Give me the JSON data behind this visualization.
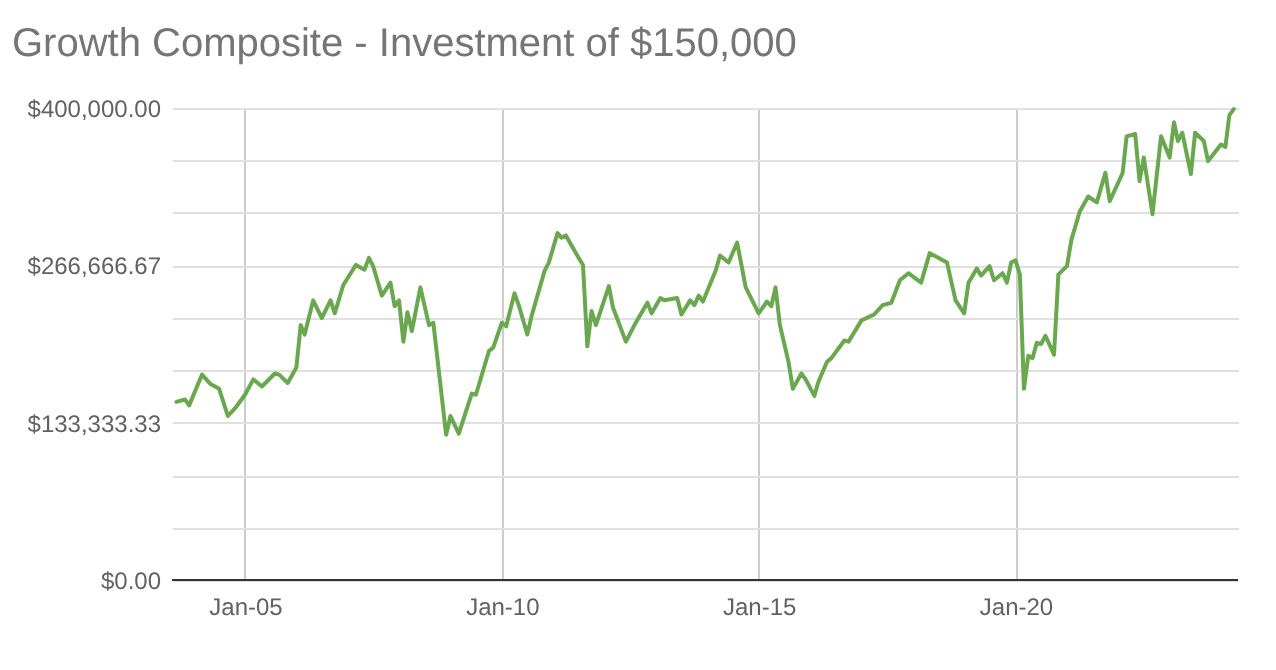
{
  "chart_data": {
    "type": "line",
    "title": "Growth Composite - Investment of $150,000",
    "x": [
      "2003-09",
      "2003-11",
      "2003-12",
      "2004-03",
      "2004-05",
      "2004-07",
      "2004-09",
      "2004-11",
      "2005-01",
      "2005-03",
      "2005-05",
      "2005-08",
      "2005-09",
      "2005-11",
      "2006-01",
      "2006-02",
      "2006-03",
      "2006-05",
      "2006-07",
      "2006-09",
      "2006-10",
      "2006-12",
      "2007-03",
      "2007-05",
      "2007-06",
      "2007-07",
      "2007-09",
      "2007-11",
      "2007-12",
      "2008-01",
      "2008-02",
      "2008-03",
      "2008-04",
      "2008-06",
      "2008-08",
      "2008-09",
      "2008-12",
      "2009-01",
      "2009-03",
      "2009-06",
      "2009-07",
      "2009-10",
      "2009-11",
      "2010-01",
      "2010-02",
      "2010-04",
      "2010-05",
      "2010-07",
      "2010-08",
      "2010-11",
      "2010-12",
      "2011-02",
      "2011-03",
      "2011-04",
      "2011-07",
      "2011-08",
      "2011-09",
      "2011-10",
      "2011-11",
      "2012-02",
      "2012-03",
      "2012-06",
      "2012-08",
      "2012-11",
      "2012-12",
      "2013-02",
      "2013-03",
      "2013-06",
      "2013-07",
      "2013-09",
      "2013-10",
      "2013-11",
      "2013-12",
      "2014-03",
      "2014-04",
      "2014-06",
      "2014-08",
      "2014-10",
      "2015-01",
      "2015-03",
      "2015-04",
      "2015-05",
      "2015-06",
      "2015-08",
      "2015-09",
      "2015-11",
      "2015-12",
      "2016-02",
      "2016-03",
      "2016-05",
      "2016-06",
      "2016-09",
      "2016-10",
      "2017-01",
      "2017-04",
      "2017-06",
      "2017-08",
      "2017-10",
      "2017-12",
      "2018-03",
      "2018-05",
      "2018-07",
      "2018-09",
      "2018-11",
      "2019-01",
      "2019-02",
      "2019-04",
      "2019-05",
      "2019-07",
      "2019-08",
      "2019-10",
      "2019-11",
      "2019-12",
      "2020-01",
      "2020-02",
      "2020-03",
      "2020-04",
      "2020-05",
      "2020-06",
      "2020-07",
      "2020-08",
      "2020-10",
      "2020-11",
      "2021-01",
      "2021-02",
      "2021-04",
      "2021-06",
      "2021-08",
      "2021-10",
      "2021-11",
      "2022-02",
      "2022-03",
      "2022-05",
      "2022-06",
      "2022-07",
      "2022-09",
      "2022-11",
      "2023-01",
      "2023-02",
      "2023-03",
      "2023-04",
      "2023-06",
      "2023-07",
      "2023-09",
      "2023-10",
      "2024-01",
      "2024-02",
      "2024-03",
      "2024-04"
    ],
    "series": [
      {
        "color": "#6aa84f",
        "values": [
          151000,
          153000,
          148000,
          174000,
          166000,
          162000,
          139000,
          147000,
          157000,
          170000,
          164000,
          175000,
          174000,
          167000,
          180000,
          216000,
          208000,
          237000,
          222000,
          237000,
          226000,
          250000,
          267000,
          263000,
          273000,
          266000,
          241000,
          252000,
          232000,
          237000,
          202000,
          227000,
          211000,
          248000,
          216000,
          218000,
          123000,
          139000,
          124000,
          158000,
          157000,
          194000,
          197000,
          218000,
          215000,
          243000,
          233000,
          208000,
          224000,
          262000,
          269000,
          294000,
          290000,
          292000,
          273000,
          267000,
          198000,
          228000,
          216000,
          249000,
          231000,
          202000,
          216000,
          235000,
          226000,
          239000,
          237000,
          239000,
          225000,
          237000,
          233000,
          241000,
          236000,
          262000,
          275000,
          269000,
          286000,
          248000,
          226000,
          236000,
          232000,
          248000,
          216000,
          185000,
          162000,
          175000,
          170000,
          156000,
          168000,
          185000,
          188000,
          203000,
          202000,
          220000,
          225000,
          233000,
          235000,
          254000,
          260000,
          252000,
          277000,
          273000,
          269000,
          237000,
          226000,
          252000,
          264000,
          258000,
          266000,
          254000,
          260000,
          252000,
          269000,
          271000,
          259000,
          162000,
          190000,
          188000,
          201000,
          200000,
          207000,
          191000,
          259000,
          266000,
          288000,
          312000,
          325000,
          320000,
          345000,
          321000,
          345000,
          376000,
          378000,
          338000,
          358000,
          310000,
          376000,
          358000,
          388000,
          372000,
          379000,
          344000,
          379000,
          372000,
          355000,
          369000,
          367000,
          394000,
          399000
        ]
      }
    ],
    "xlim": [
      "2003-08",
      "2024-05"
    ],
    "xticks": [
      {
        "value": "2005-01",
        "label": "Jan-05"
      },
      {
        "value": "2010-01",
        "label": "Jan-10"
      },
      {
        "value": "2015-01",
        "label": "Jan-15"
      },
      {
        "value": "2020-01",
        "label": "Jan-20"
      }
    ],
    "ylim": [
      0,
      400000
    ],
    "yticks": [
      {
        "value": 0,
        "label": "$0.00"
      },
      {
        "value": 44444.44,
        "label": null
      },
      {
        "value": 88888.89,
        "label": null
      },
      {
        "value": 133333.33,
        "label": "$133,333.33"
      },
      {
        "value": 177777.78,
        "label": null
      },
      {
        "value": 222222.22,
        "label": null
      },
      {
        "value": 266666.67,
        "label": "$266,666.67"
      },
      {
        "value": 311111.11,
        "label": null
      },
      {
        "value": 355555.56,
        "label": null
      },
      {
        "value": 400000,
        "label": "$400,000.00"
      }
    ],
    "grid": true
  }
}
